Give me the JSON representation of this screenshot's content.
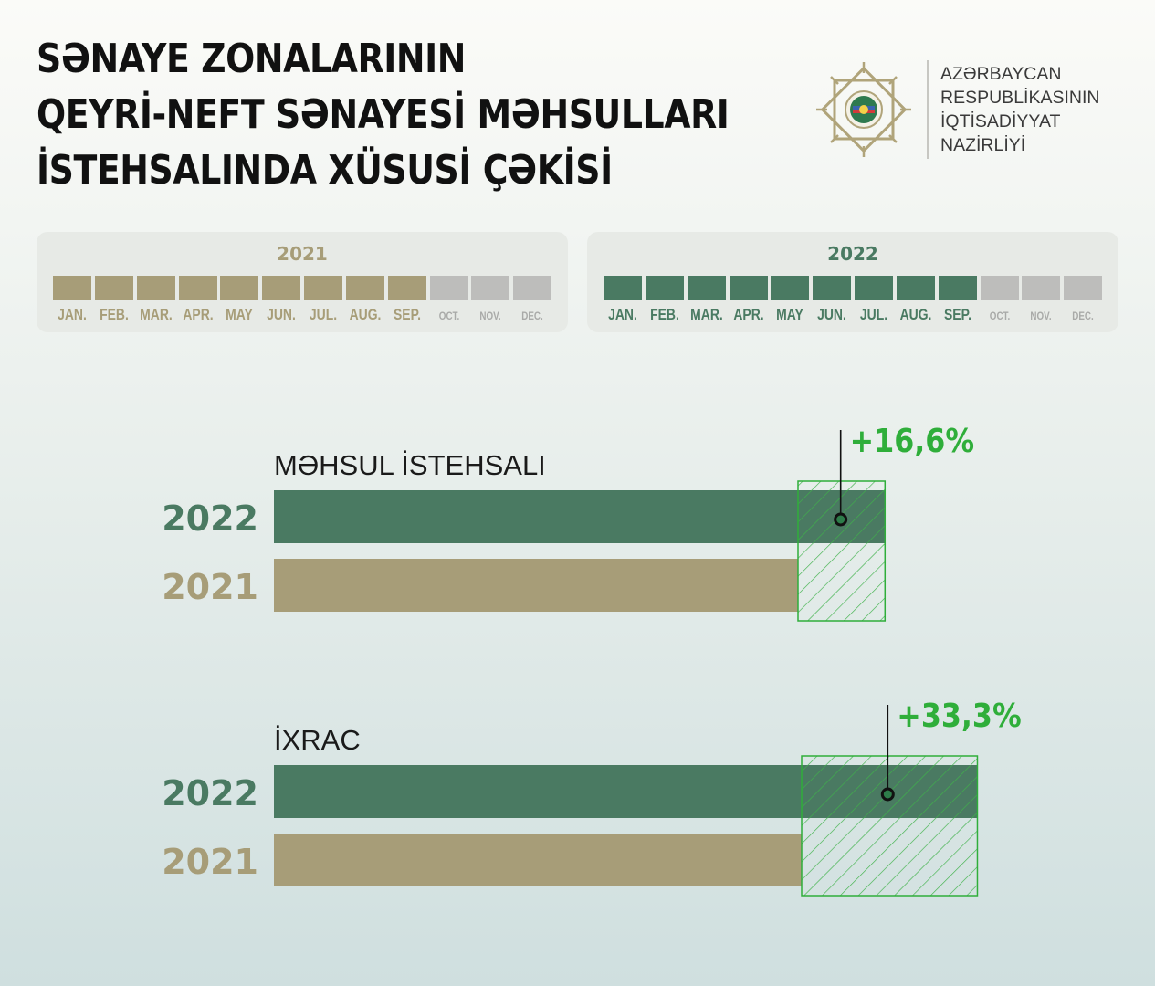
{
  "header": {
    "title_lines": [
      "SƏNAYE ZONALARININ",
      "QEYRİ-NEFT SƏNAYESİ MƏHSULLARI",
      "İSTEHSALINDA XÜSUSİ ÇƏKİSİ"
    ],
    "ministry_lines": [
      "AZƏRBAYCAN",
      "RESPUBLİKASININ",
      "İQTİSADİYYAT",
      "NAZİRLİYİ"
    ]
  },
  "periods": [
    {
      "year": "2021",
      "active_color": "#a79d78",
      "months": [
        {
          "label": "JAN.",
          "active": true
        },
        {
          "label": "FEB.",
          "active": true
        },
        {
          "label": "MAR.",
          "active": true
        },
        {
          "label": "APR.",
          "active": true
        },
        {
          "label": "MAY",
          "active": true
        },
        {
          "label": "JUN.",
          "active": true
        },
        {
          "label": "JUL.",
          "active": true
        },
        {
          "label": "AUG.",
          "active": true
        },
        {
          "label": "SEP.",
          "active": true
        },
        {
          "label": "OCT.",
          "active": false
        },
        {
          "label": "NOV.",
          "active": false
        },
        {
          "label": "DEC.",
          "active": false
        }
      ]
    },
    {
      "year": "2022",
      "active_color": "#4a7a62",
      "months": [
        {
          "label": "JAN.",
          "active": true
        },
        {
          "label": "FEB.",
          "active": true
        },
        {
          "label": "MAR.",
          "active": true
        },
        {
          "label": "APR.",
          "active": true
        },
        {
          "label": "MAY",
          "active": true
        },
        {
          "label": "JUN.",
          "active": true
        },
        {
          "label": "JUL.",
          "active": true
        },
        {
          "label": "AUG.",
          "active": true
        },
        {
          "label": "SEP.",
          "active": true
        },
        {
          "label": "OCT.",
          "active": false
        },
        {
          "label": "NOV.",
          "active": false
        },
        {
          "label": "DEC.",
          "active": false
        }
      ]
    }
  ],
  "colors": {
    "y2022": "#4a7a62",
    "y2021": "#a79d78",
    "inactive": "#bdbdbb",
    "increase": "#2fae3a"
  },
  "chart_data": [
    {
      "type": "bar",
      "title": "MƏHSUL İSTEHSALI",
      "categories": [
        "2022",
        "2021"
      ],
      "values": [
        116.6,
        100
      ],
      "baseline_category": "2021",
      "change_label": "+16,6%",
      "change_percent": 16.6
    },
    {
      "type": "bar",
      "title": "İXRAC",
      "categories": [
        "2022",
        "2021"
      ],
      "values": [
        133.3,
        100
      ],
      "baseline_category": "2021",
      "change_label": "+33,3%",
      "change_percent": 33.3
    }
  ]
}
